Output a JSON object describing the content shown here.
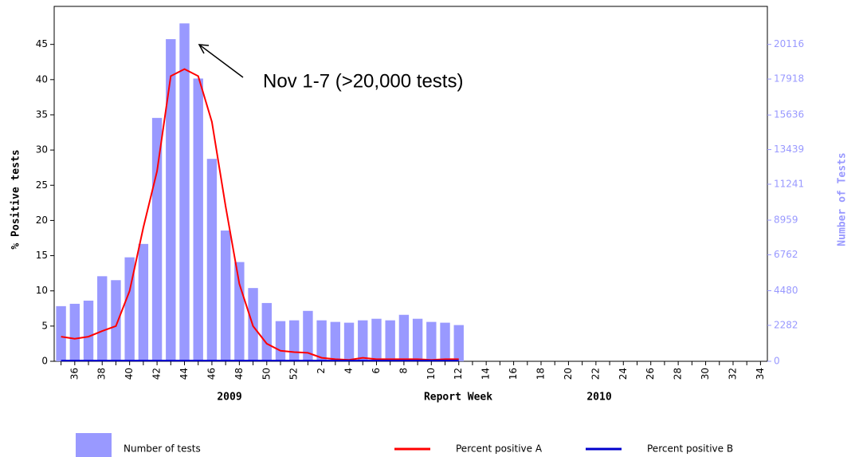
{
  "chart_data": {
    "type": "combo",
    "categories": [
      null,
      "36",
      null,
      "38",
      null,
      "40",
      null,
      "42",
      null,
      "44",
      null,
      "46",
      null,
      "48",
      null,
      "50",
      null,
      "52",
      null,
      "2",
      null,
      "4",
      null,
      "6",
      null,
      "8",
      null,
      "10",
      null,
      "12",
      null,
      "14",
      null,
      "16",
      null,
      "18",
      null,
      "20",
      null,
      "22",
      null,
      "24",
      null,
      "26",
      null,
      "28",
      null,
      "30",
      null,
      "32",
      null,
      "34"
    ],
    "x_label": "Report Week",
    "year_labels": [
      "2009",
      "2010"
    ],
    "y_label": "% Positive tests",
    "y2_label": "Number of Tests",
    "annotation": "Nov 1-7 (>20,000 tests)",
    "ylim": [
      0,
      50.4
    ],
    "yticks": [
      0,
      5,
      10,
      15,
      20,
      25,
      30,
      35,
      40,
      45
    ],
    "y2lim": [
      0,
      22530
    ],
    "y2ticks": [
      0,
      2282,
      4480,
      6762,
      8959,
      11241,
      13439,
      15636,
      17918,
      20116
    ],
    "series": [
      {
        "name": "Number of tests",
        "type": "bar",
        "axis": "y2",
        "color": "#9999ff",
        "values": [
          3500,
          3650,
          3850,
          5400,
          5150,
          6600,
          7450,
          15450,
          20450,
          21450,
          17950,
          12850,
          8300,
          6300,
          4650,
          3700,
          2550,
          2600,
          3200,
          2600,
          2500,
          2450,
          2600,
          2700,
          2600,
          2950,
          2700,
          2500,
          2450,
          2300,
          null,
          null,
          null,
          null,
          null,
          null,
          null,
          null,
          null,
          null,
          null,
          null,
          null,
          null,
          null,
          null,
          null,
          null,
          null,
          null,
          null,
          null
        ]
      },
      {
        "name": "Percent positive A",
        "type": "line",
        "color": "#ff0000",
        "values": [
          3.5,
          3.2,
          3.5,
          4.3,
          5.0,
          10,
          19,
          27,
          40.5,
          41.5,
          40.5,
          34,
          22,
          11,
          5,
          2.5,
          1.5,
          1.3,
          1.2,
          0.5,
          0.3,
          0.2,
          0.5,
          0.3,
          0.3,
          0.3,
          0.3,
          0.2,
          0.3,
          0.3,
          null,
          null,
          null,
          null,
          null,
          null,
          null,
          null,
          null,
          null,
          null,
          null,
          null,
          null,
          null,
          null,
          null,
          null,
          null,
          null,
          null,
          null
        ]
      },
      {
        "name": "Percent positive B",
        "type": "line",
        "color": "#0000cc",
        "values": [
          0.1,
          0.1,
          0.1,
          0.1,
          0.1,
          0.1,
          0.1,
          0.1,
          0.1,
          0.1,
          0.1,
          0.1,
          0.1,
          0.1,
          0.1,
          0.1,
          0.1,
          0.1,
          0.1,
          0.1,
          0.1,
          0.1,
          0.1,
          0.1,
          0.1,
          0.1,
          0.1,
          0.1,
          0.1,
          0.1,
          null,
          null,
          null,
          null,
          null,
          null,
          null,
          null,
          null,
          null,
          null,
          null,
          null,
          null,
          null,
          null,
          null,
          null,
          null,
          null,
          null,
          null
        ]
      }
    ]
  }
}
